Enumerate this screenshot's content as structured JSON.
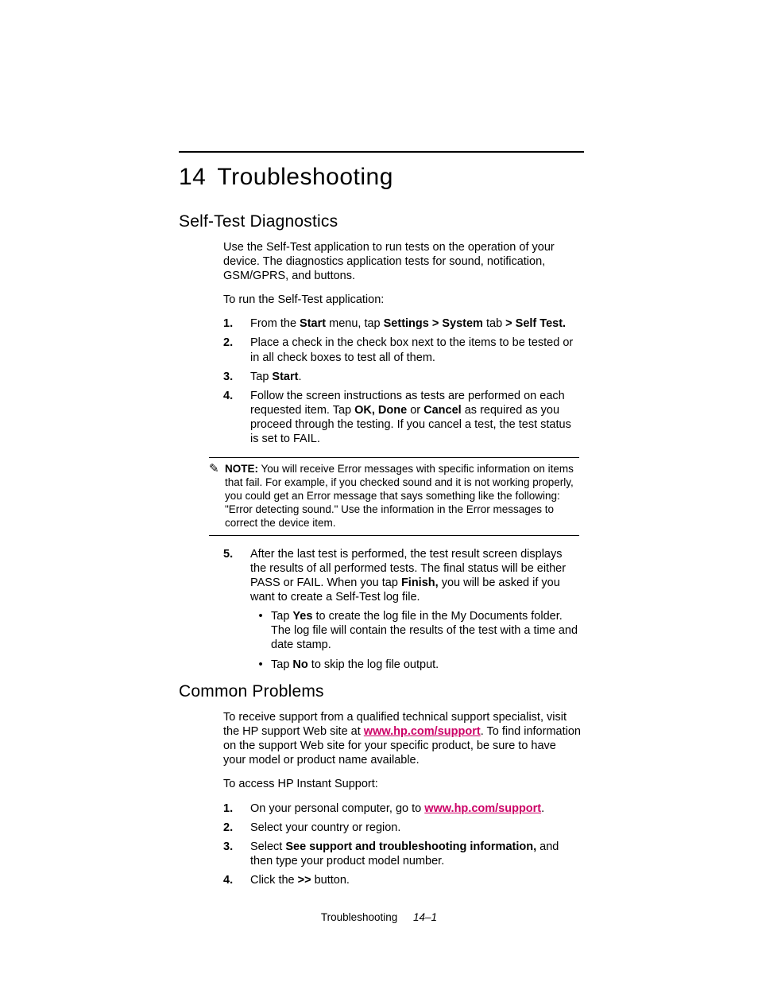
{
  "chapter": {
    "number": "14",
    "title": "Troubleshooting"
  },
  "section1": {
    "heading": "Self-Test Diagnostics",
    "intro": "Use the Self-Test application to run tests on the operation of your device. The diagnostics application tests for sound, notification, GSM/GPRS, and buttons.",
    "lead": "To run the Self-Test application:",
    "step1": {
      "n": "1.",
      "pre": "From the ",
      "b1": "Start",
      "mid": " menu, tap ",
      "b2": "Settings > System",
      "mid2": " tab ",
      "b3": "> Self Test."
    },
    "step2": {
      "n": "2.",
      "txt": "Place a check in the check box next to the items to be tested or in all check boxes to test all of them."
    },
    "step3": {
      "n": "3.",
      "pre": "Tap ",
      "b": "Start",
      "post": "."
    },
    "step4": {
      "n": "4.",
      "pre": "Follow the screen instructions as tests are performed on each requested item. Tap ",
      "b": "OK, Done",
      "mid": " or ",
      "b2": "Cancel",
      "post": " as required as you proceed through the testing. If you cancel a test, the test status is set to FAIL."
    },
    "note": {
      "label": "NOTE:",
      "txt": " You will receive Error messages with specific information on items that fail. For example, if you checked sound and it is not working properly, you could get an Error message that says something like the following: \"Error detecting sound.\" Use the information in the Error messages to correct the device item."
    },
    "step5": {
      "n": "5.",
      "pre": "After the last test is performed, the test result screen displays the results of all performed tests. The final status will be either PASS or FAIL. When you tap ",
      "b": "Finish,",
      "post": " you will be asked if you want to create a Self-Test log file.",
      "sub1": {
        "pre": "Tap ",
        "b": "Yes",
        "post": " to create the log file in the My Documents folder. The log file will contain the results of the test with a time and date stamp."
      },
      "sub2": {
        "pre": "Tap ",
        "b": "No",
        "post": " to skip the log file output."
      }
    }
  },
  "section2": {
    "heading": "Common Problems",
    "intro": {
      "pre": "To receive support from a qualified technical support specialist, visit the HP support Web site at ",
      "link": "www.hp.com/support",
      "post": ". To find information on the support Web site for your specific product, be sure to have your model or product name available."
    },
    "lead": "To access HP Instant Support:",
    "step1": {
      "n": "1.",
      "pre": "On your personal computer, go to ",
      "link": "www.hp.com/support",
      "post": "."
    },
    "step2": {
      "n": "2.",
      "txt": "Select your country or region."
    },
    "step3": {
      "n": "3.",
      "pre": "Select ",
      "b": "See support and troubleshooting information,",
      "post": " and then type your product model number."
    },
    "step4": {
      "n": "4.",
      "pre": "Click the ",
      "b": ">>",
      "post": " button."
    }
  },
  "footer": {
    "section": "Troubleshooting",
    "page": "14–1"
  },
  "style": {
    "link_color": "#cc0066"
  }
}
